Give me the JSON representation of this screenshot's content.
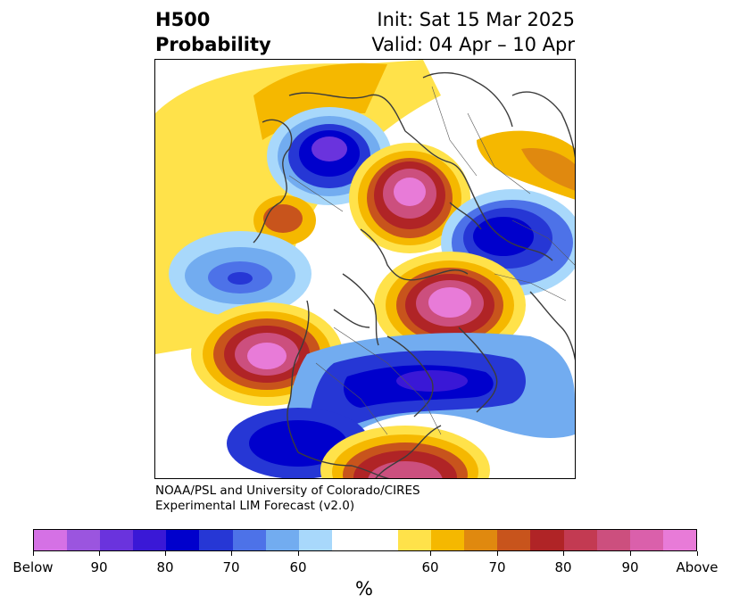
{
  "header": {
    "title_line1": "H500",
    "title_line2": "Probability",
    "init": "Init: Sat 15 Mar 2025",
    "valid": "Valid: 04 Apr – 10 Apr"
  },
  "credit": {
    "line1": "NOAA/PSL and University of Colorado/CIRES",
    "line2": "Experimental LIM Forecast (v2.0)"
  },
  "colorbar": {
    "colors": [
      "#d571e5",
      "#9b55df",
      "#6a33dd",
      "#3a18d6",
      "#0000cc",
      "#2637d5",
      "#4d72e8",
      "#72acf0",
      "#a8d8fb",
      "#ffffff",
      "#ffe24a",
      "#f5b800",
      "#e0890f",
      "#c8541c",
      "#b02426",
      "#c33a52",
      "#cc4f7e",
      "#da60ab",
      "#e87bd8"
    ],
    "tick_labels": [
      "Below",
      "90",
      "80",
      "70",
      "60",
      "60",
      "70",
      "80",
      "90",
      "Above"
    ],
    "unit": "%"
  },
  "map": {
    "projection": "north-polar-stereographic",
    "anomalies": [
      {
        "region": "northern Asia / Siberia",
        "sign": "below",
        "max_category": "90"
      },
      {
        "region": "Arctic Ocean / Kara Sea",
        "sign": "above",
        "max_category": "Above"
      },
      {
        "region": "Europe / Scandinavia",
        "sign": "below",
        "max_category": "80"
      },
      {
        "region": "Greenland / Baffin Bay",
        "sign": "above",
        "max_category": "Above"
      },
      {
        "region": "North Pacific / Gulf of Alaska",
        "sign": "above",
        "max_category": "Above"
      },
      {
        "region": "Canada / western Atlantic",
        "sign": "below",
        "max_category": "90"
      },
      {
        "region": "western United States",
        "sign": "below",
        "max_category": "90"
      },
      {
        "region": "Gulf of Mexico / southeastern US",
        "sign": "above",
        "max_category": "90"
      }
    ]
  }
}
